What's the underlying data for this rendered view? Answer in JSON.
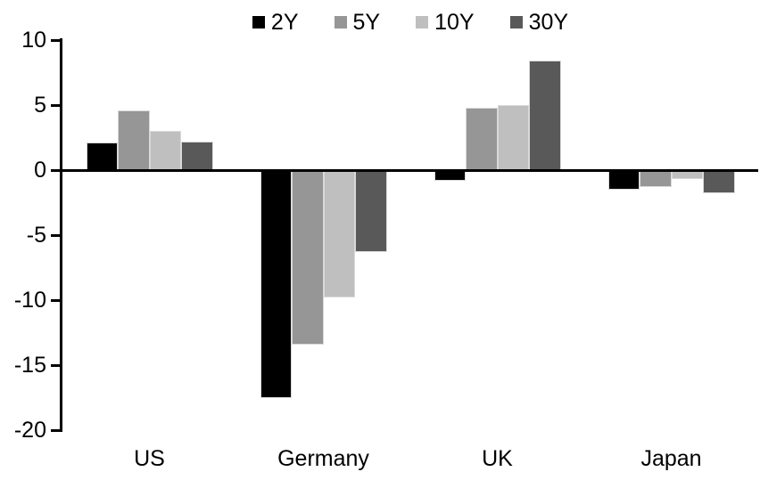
{
  "chart_data": {
    "type": "bar",
    "title": "",
    "xlabel": "",
    "ylabel": "",
    "categories": [
      "US",
      "Germany",
      "UK",
      "Japan"
    ],
    "series": [
      {
        "name": "2Y",
        "color": "#000000",
        "values": [
          2.1,
          -17.5,
          -0.8,
          -1.5
        ]
      },
      {
        "name": "5Y",
        "color": "#969696",
        "values": [
          4.6,
          -13.4,
          4.8,
          -1.3
        ]
      },
      {
        "name": "10Y",
        "color": "#BFBFBF",
        "values": [
          3.0,
          -9.8,
          5.0,
          -0.7
        ]
      },
      {
        "name": "30Y",
        "color": "#595959",
        "values": [
          2.2,
          -6.3,
          8.4,
          -1.8
        ]
      }
    ],
    "ylim": [
      -20,
      10
    ],
    "yticks": [
      10,
      5,
      0,
      -5,
      -10,
      -15,
      -20
    ],
    "ytick_labels": [
      "10",
      "5",
      "0",
      "-5",
      "-10",
      "-15",
      "-20"
    ],
    "legend_position": "top-center",
    "grid": false,
    "axis_color": "#000000",
    "bar_edge_color": "#D9D9D9",
    "background_color": "#FFFFFF"
  }
}
